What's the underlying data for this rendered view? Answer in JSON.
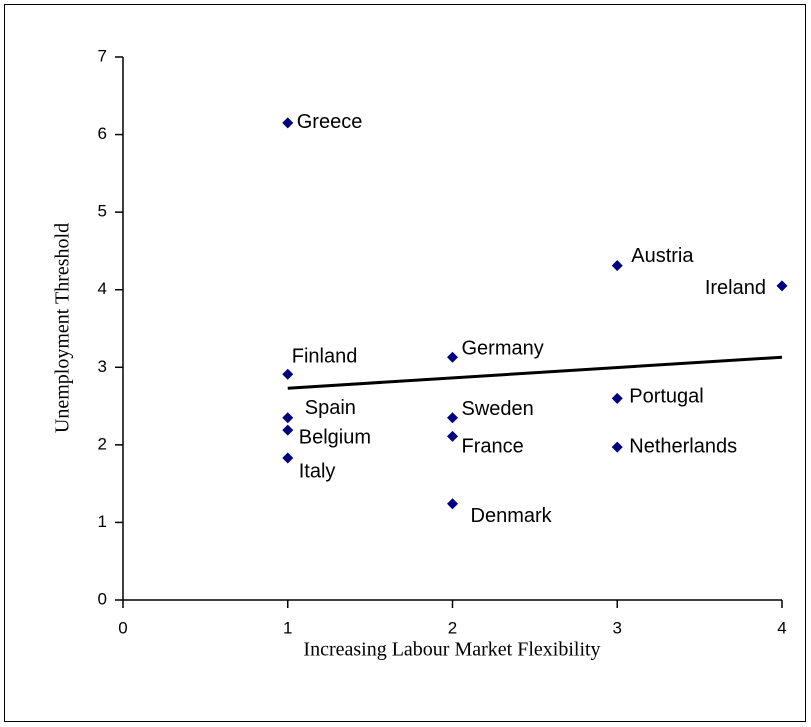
{
  "chart_data": {
    "type": "scatter",
    "x_label": "Increasing Labour Market Flexibility",
    "y_label": "Unemployment Threshold",
    "labels": [
      "Greece",
      "Finland",
      "Spain",
      "Belgium",
      "Italy",
      "Germany",
      "Sweden",
      "France",
      "Denmark",
      "Austria",
      "Portugal",
      "Netherlands",
      "Ireland"
    ],
    "x": [
      1,
      1,
      1,
      1,
      1,
      2,
      2,
      2,
      2,
      3,
      3,
      3,
      4
    ],
    "y": [
      6.15,
      2.91,
      2.35,
      2.19,
      1.83,
      3.13,
      2.35,
      2.11,
      1.24,
      4.31,
      2.6,
      1.97,
      4.05
    ],
    "color": "#000080",
    "trendline": {
      "x": [
        1,
        4
      ],
      "y": [
        2.73,
        3.13
      ],
      "color": "#000000"
    },
    "xlim": [
      0,
      4
    ],
    "xticks": [
      0,
      1,
      2,
      3,
      4
    ],
    "ylim": [
      0,
      7
    ],
    "yticks": [
      0,
      1,
      2,
      3,
      4,
      5,
      6,
      7
    ]
  }
}
